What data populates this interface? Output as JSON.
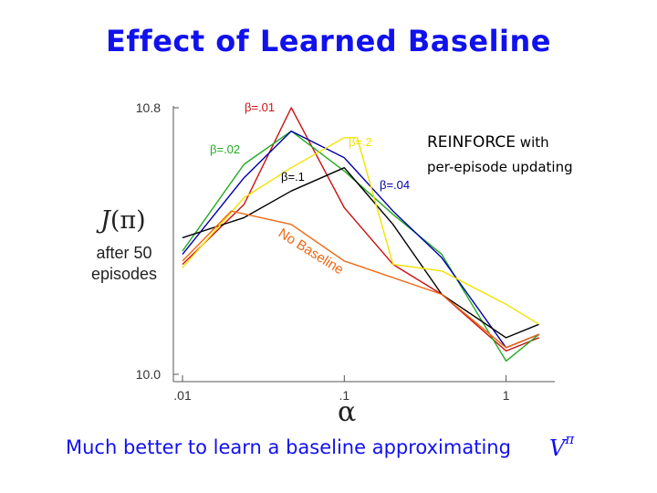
{
  "title": "Effect of Learned Baseline",
  "caption": "Much better to learn a baseline approximating",
  "caption_symbol": "V",
  "caption_symbol_sup": "π",
  "annotation": {
    "line1_a": "REINFORCE",
    "line1_b": " with",
    "line2": "per-episode updating"
  },
  "ylabel_main_j": "J",
  "ylabel_main_pi": "(π)",
  "ylabel_sub": "after 50 episodes",
  "xlabel": "α",
  "colors": {
    "title": "#1111ee",
    "beta01": "#cc1111",
    "beta02": "#22aa22",
    "beta04": "#0000aa",
    "beta1": "#000000",
    "beta2": "#f2e200",
    "no_baseline": "#ee6611",
    "axis": "#555555"
  },
  "chart_data": {
    "type": "line",
    "xscale": "log",
    "xlim": [
      0.01,
      2.0
    ],
    "ylim": [
      10.0,
      10.8
    ],
    "xticks": [
      {
        "value": 0.01,
        "label": ".01"
      },
      {
        "value": 0.1,
        "label": ".1"
      },
      {
        "value": 1,
        "label": "1"
      }
    ],
    "yticks": [
      {
        "value": 10.0,
        "label": "10.0"
      },
      {
        "value": 10.8,
        "label": "10.8"
      }
    ],
    "grid": false,
    "series": [
      {
        "name": "β=.01",
        "color": "#cc1111",
        "x": [
          0.01,
          0.024,
          0.047,
          0.1,
          0.2,
          0.4,
          1.0,
          1.6
        ],
        "y": [
          10.33,
          10.51,
          10.8,
          10.5,
          10.33,
          10.24,
          10.07,
          10.11
        ]
      },
      {
        "name": "β=.02",
        "color": "#22aa22",
        "x": [
          0.01,
          0.024,
          0.047,
          0.1,
          0.2,
          0.4,
          1.0,
          1.6
        ],
        "y": [
          10.37,
          10.63,
          10.73,
          10.61,
          10.48,
          10.36,
          10.04,
          10.12
        ]
      },
      {
        "name": "β=.04",
        "color": "#0000aa",
        "x": [
          0.01,
          0.024,
          0.047,
          0.1,
          0.2,
          0.4,
          1.0,
          1.6
        ],
        "y": [
          10.36,
          10.59,
          10.73,
          10.65,
          10.49,
          10.35,
          10.08,
          10.12
        ]
      },
      {
        "name": "β=.1",
        "color": "#000000",
        "x": [
          0.01,
          0.024,
          0.047,
          0.1,
          0.2,
          0.4,
          1.0,
          1.6
        ],
        "y": [
          10.41,
          10.47,
          10.55,
          10.62,
          10.45,
          10.24,
          10.11,
          10.15
        ]
      },
      {
        "name": "β=.2",
        "color": "#f2e200",
        "x": [
          0.01,
          0.024,
          0.047,
          0.1,
          0.12,
          0.2,
          0.4,
          1.0,
          1.6
        ],
        "y": [
          10.32,
          10.53,
          10.62,
          10.71,
          10.71,
          10.33,
          10.31,
          10.21,
          10.15
        ]
      },
      {
        "name": "No Baseline",
        "color": "#ee6611",
        "x": [
          0.01,
          0.02,
          0.047,
          0.1,
          0.4,
          1.0,
          1.6
        ],
        "y": [
          10.34,
          10.49,
          10.45,
          10.34,
          10.24,
          10.08,
          10.12
        ]
      }
    ]
  }
}
